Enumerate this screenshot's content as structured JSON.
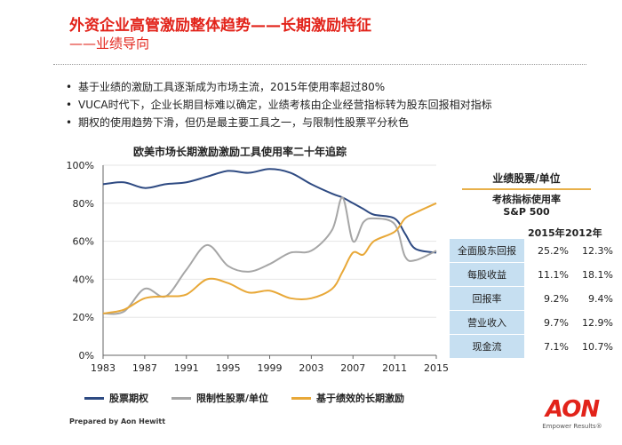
{
  "header": {
    "title": "外资企业高管激励整体趋势——长期激励特征",
    "subtitle": "——业绩导向"
  },
  "bullets": [
    "基于业绩的激励工具逐渐成为市场主流，2015年使用率超过80%",
    "VUCA时代下，企业长期目标难以确定，业绩考核由企业经营指标转为股东回报相对指标",
    "期权的使用趋势下滑，但仍是最主要工具之一，与限制性股票平分秋色"
  ],
  "chart_data": {
    "type": "line",
    "title": "欧美市场长期激励激励工具使用率二十年追踪",
    "xlabel": "",
    "ylabel": "",
    "xlim": [
      1983,
      2015
    ],
    "ylim": [
      0,
      100
    ],
    "x": [
      1983,
      1985,
      1987,
      1989,
      1991,
      1993,
      1995,
      1997,
      1999,
      2001,
      2003,
      2005,
      2006,
      2007,
      2008,
      2009,
      2011,
      2012,
      2013,
      2015
    ],
    "series": [
      {
        "name": "股票期权",
        "color": "#2e4a82",
        "values": [
          90,
          91,
          88,
          90,
          91,
          94,
          97,
          96,
          98,
          96,
          90,
          85,
          83,
          80,
          77,
          74,
          72,
          64,
          56,
          54
        ]
      },
      {
        "name": "限制性股票/单位",
        "color": "#a6a6a6",
        "values": [
          22,
          23,
          35,
          31,
          45,
          58,
          47,
          44,
          48,
          54,
          55,
          66,
          83,
          60,
          70,
          72,
          69,
          52,
          50,
          55
        ]
      },
      {
        "name": "基于绩效的长期激励",
        "color": "#e8a838",
        "values": [
          22,
          24,
          30,
          31,
          32,
          40,
          38,
          33,
          34,
          30,
          30,
          35,
          44,
          54,
          53,
          60,
          65,
          72,
          75,
          80
        ]
      }
    ],
    "x_ticks": [
      "1983",
      "1987",
      "1991",
      "1995",
      "1999",
      "2003",
      "2007",
      "2011",
      "2015"
    ],
    "y_ticks": [
      "0%",
      "20%",
      "40%",
      "60%",
      "80%",
      "100%"
    ]
  },
  "table": {
    "title": "业绩股票/单位",
    "subtitle": "考核指标使用率",
    "source": "S&P 500",
    "col_2015": "2015年",
    "col_2012": "2012年",
    "rows": [
      {
        "category": "全面股东回报",
        "v2015": "25.2%",
        "v2012": "12.3%"
      },
      {
        "category": "每股收益",
        "v2015": "11.1%",
        "v2012": "18.1%"
      },
      {
        "category": "回报率",
        "v2015": "9.2%",
        "v2012": "9.4%"
      },
      {
        "category": "营业收入",
        "v2015": "9.7%",
        "v2012": "12.9%"
      },
      {
        "category": "现金流",
        "v2015": "7.1%",
        "v2012": "10.7%"
      }
    ]
  },
  "footer": "Prepared by Aon Hewitt",
  "logo": {
    "brand": "AON",
    "tagline": "Empower Results®"
  }
}
